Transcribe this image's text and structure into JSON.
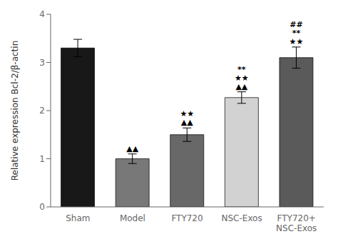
{
  "chart_data": {
    "type": "bar",
    "categories": [
      "Sham",
      "Model",
      "FTY720",
      "NSC-Exos",
      "FTY720+\nNSC-Exos"
    ],
    "values": [
      3.3,
      1.0,
      1.5,
      2.27,
      3.1
    ],
    "errors": [
      0.18,
      0.1,
      0.14,
      0.12,
      0.22
    ],
    "colors": [
      "#181818",
      "#787878",
      "#686868",
      "#d2d2d2",
      "#5a5a5a"
    ],
    "ylabel": "Relative expression Bcl-2/β-actin",
    "ylim": [
      0,
      4
    ],
    "yticks": [
      0,
      1,
      2,
      3,
      4
    ],
    "annotations": [
      {
        "category": "Model",
        "lines": [
          "▲▲"
        ]
      },
      {
        "category": "FTY720",
        "lines": [
          "★★",
          "▲▲"
        ]
      },
      {
        "category": "NSC-Exos",
        "lines": [
          "**",
          "★★",
          "▲▲"
        ]
      },
      {
        "category": "FTY720+\nNSC-Exos",
        "lines": [
          "##",
          "**",
          "★★"
        ]
      }
    ],
    "grid": false
  }
}
